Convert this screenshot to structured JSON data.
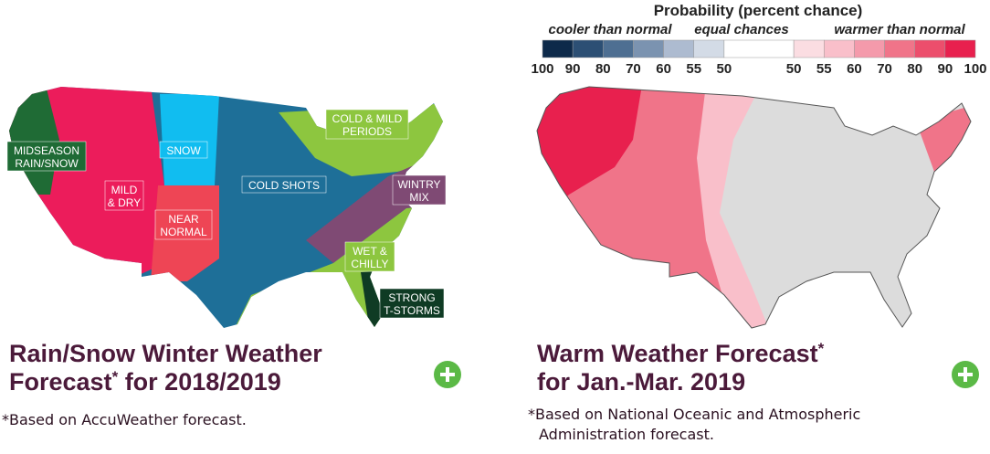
{
  "left": {
    "labels": [
      {
        "lines": [
          "MIDSEASON",
          "RAIN/SNOW"
        ]
      },
      {
        "lines": [
          "SNOW"
        ]
      },
      {
        "lines": [
          "COLD & MILD",
          "PERIODS"
        ]
      },
      {
        "lines": [
          "MILD",
          "& DRY"
        ]
      },
      {
        "lines": [
          "NEAR",
          "NORMAL"
        ]
      },
      {
        "lines": [
          "COLD SHOTS"
        ]
      },
      {
        "lines": [
          "WINTRY",
          "MIX"
        ]
      },
      {
        "lines": [
          "WET &",
          "CHILLY"
        ]
      },
      {
        "lines": [
          "STRONG",
          "T-STORMS"
        ]
      }
    ],
    "title": {
      "line1": "Rain/Snow Winter Weather",
      "line2_before": "Forecast",
      "mark": "*",
      "line2_after": " for 2018/2019"
    },
    "footnote": [
      "*Based on AccuWeather forecast."
    ]
  },
  "right": {
    "legend": {
      "title": "Probability (percent chance)",
      "cooler": "cooler than normal",
      "equal": "equal chances",
      "warmer": "warmer than normal",
      "colors": [
        "#0d2a4a",
        "#2c4f74",
        "#4e6f92",
        "#7b93b0",
        "#adbbd0",
        "#d3dbe6",
        "#ffffff",
        "#fbdde2",
        "#f9bfca",
        "#f49aab",
        "#f07489",
        "#ec4e6c",
        "#e8204e"
      ],
      "ticks": [
        "100",
        "90",
        "80",
        "70",
        "60",
        "55",
        "50",
        "50",
        "55",
        "60",
        "70",
        "80",
        "90",
        "100"
      ]
    },
    "title": {
      "line1_before": "Warm Weather Forecast",
      "mark": "*",
      "line2": "for Jan.-Mar. 2019"
    },
    "footnote": [
      "*Based on National Oceanic and Atmospheric",
      "Administration forecast."
    ]
  }
}
